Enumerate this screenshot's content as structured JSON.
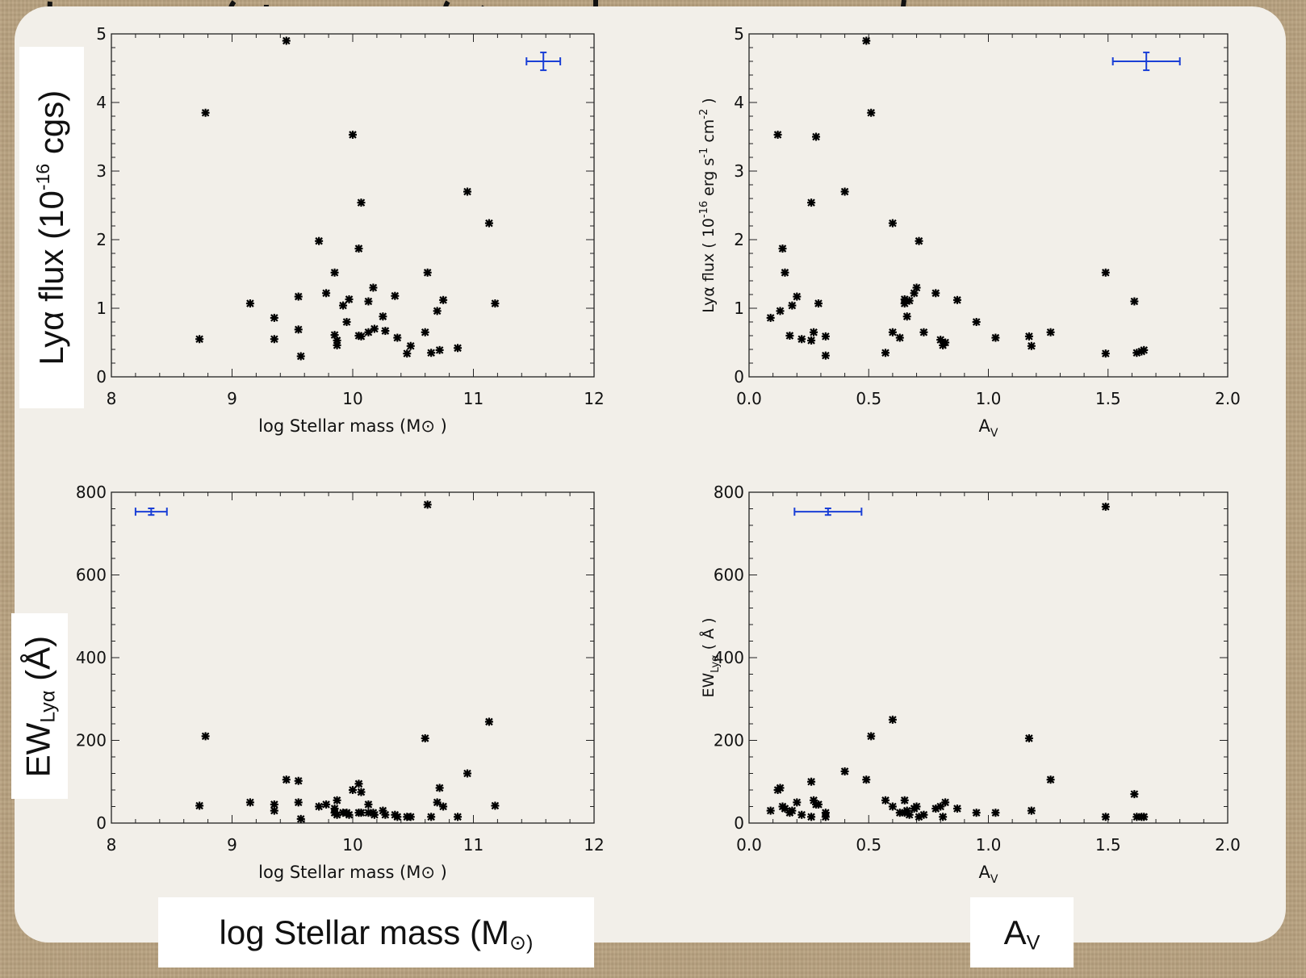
{
  "labels": {
    "flux_big_main": "Lyα flux (10",
    "flux_big_sup": "-16",
    "flux_big_tail": " cgs)",
    "ew_big_main": "EW",
    "ew_big_sub": "Lyα",
    "ew_big_tail": " (Å)",
    "mass_big_main": "log Stellar mass (M",
    "mass_big_tail": "⊙)",
    "av_big_main": "A",
    "av_big_sub": "V"
  },
  "colors": {
    "marker": "#000000",
    "errorbar": "#1a3fd6",
    "slide": "#f2efe9",
    "frame": "#b8a17f"
  },
  "chart_data": [
    {
      "type": "scatter",
      "title": "",
      "xlabel": "log Stellar mass (M⊙ )",
      "ylabel": "",
      "xlim": [
        8,
        12
      ],
      "ylim": [
        0,
        5
      ],
      "xticks": [
        8,
        9,
        10,
        11,
        12
      ],
      "yticks": [
        0,
        1,
        2,
        3,
        4,
        5
      ],
      "xtick_labels": [
        "8",
        "9",
        "10",
        "11",
        "12"
      ],
      "ytick_labels": [
        "0",
        "1",
        "2",
        "3",
        "4",
        "5"
      ],
      "grid": false,
      "errorbar": {
        "x": 11.58,
        "y": 4.6,
        "xerr": 0.14,
        "yerr": 0.13
      },
      "x": [
        8.73,
        8.78,
        9.15,
        9.35,
        9.35,
        9.45,
        9.55,
        9.55,
        9.57,
        9.72,
        9.78,
        9.85,
        9.85,
        9.87,
        9.87,
        9.92,
        9.95,
        9.97,
        10.0,
        10.05,
        10.05,
        10.07,
        10.07,
        10.13,
        10.13,
        10.17,
        10.18,
        10.25,
        10.27,
        10.35,
        10.37,
        10.45,
        10.48,
        10.6,
        10.62,
        10.65,
        10.7,
        10.72,
        10.75,
        10.87,
        10.95,
        11.13,
        11.18
      ],
      "y": [
        0.55,
        3.85,
        1.07,
        0.86,
        0.55,
        4.9,
        1.17,
        0.69,
        0.3,
        1.98,
        1.22,
        1.52,
        0.61,
        0.53,
        0.46,
        1.04,
        0.8,
        1.13,
        3.53,
        0.6,
        1.87,
        0.59,
        2.54,
        1.1,
        0.65,
        1.3,
        0.7,
        0.88,
        0.67,
        1.18,
        0.57,
        0.34,
        0.45,
        0.65,
        1.52,
        0.35,
        0.96,
        0.39,
        1.12,
        0.42,
        2.7,
        2.24,
        1.07
      ]
    },
    {
      "type": "scatter",
      "title": "",
      "xlabel": "A",
      "xlabel_sub": "V",
      "ylabel": "Lyα flux ( 10",
      "ylabel_sup": "-16",
      "ylabel_tail": " erg s",
      "ylabel_sup2": "-1",
      "ylabel_tail2": " cm",
      "ylabel_sup3": "-2",
      "ylabel_tail3": " )",
      "xlim": [
        0,
        2
      ],
      "ylim": [
        0,
        5
      ],
      "xticks": [
        0,
        0.5,
        1.0,
        1.5,
        2.0
      ],
      "yticks": [
        0,
        1,
        2,
        3,
        4,
        5
      ],
      "xtick_labels": [
        "0.0",
        "0.5",
        "1.0",
        "1.5",
        "2.0"
      ],
      "ytick_labels": [
        "0",
        "1",
        "2",
        "3",
        "4",
        "5"
      ],
      "grid": false,
      "errorbar": {
        "x": 1.66,
        "y": 4.6,
        "xerr": 0.14,
        "yerr": 0.13
      },
      "x": [
        0.09,
        0.12,
        0.13,
        0.14,
        0.15,
        0.17,
        0.18,
        0.2,
        0.22,
        0.26,
        0.26,
        0.27,
        0.28,
        0.29,
        0.32,
        0.32,
        0.4,
        0.49,
        0.51,
        0.57,
        0.6,
        0.6,
        0.63,
        0.65,
        0.65,
        0.66,
        0.67,
        0.69,
        0.7,
        0.71,
        0.73,
        0.78,
        0.8,
        0.81,
        0.82,
        0.87,
        0.95,
        1.03,
        1.17,
        1.18,
        1.26,
        1.49,
        1.49,
        1.61,
        1.62,
        1.64,
        1.65
      ],
      "y": [
        0.86,
        3.53,
        0.96,
        1.87,
        1.52,
        0.6,
        1.04,
        1.17,
        0.55,
        2.54,
        0.53,
        0.65,
        3.5,
        1.07,
        0.31,
        0.59,
        2.7,
        4.9,
        3.85,
        0.35,
        0.65,
        2.24,
        0.57,
        1.13,
        1.07,
        0.88,
        1.11,
        1.22,
        1.3,
        1.98,
        0.65,
        1.22,
        0.54,
        0.46,
        0.5,
        1.12,
        0.8,
        0.57,
        0.59,
        0.45,
        0.65,
        1.52,
        0.34,
        1.1,
        0.35,
        0.37,
        0.39
      ]
    },
    {
      "type": "scatter",
      "title": "",
      "xlabel": "log Stellar mass (M⊙ )",
      "ylabel": "",
      "xlim": [
        8,
        12
      ],
      "ylim": [
        0,
        800
      ],
      "xticks": [
        8,
        9,
        10,
        11,
        12
      ],
      "yticks": [
        0,
        200,
        400,
        600,
        800
      ],
      "xtick_labels": [
        "8",
        "9",
        "10",
        "11",
        "12"
      ],
      "ytick_labels": [
        "0",
        "200",
        "400",
        "600",
        "800"
      ],
      "grid": false,
      "errorbar": {
        "x": 8.33,
        "y": 753,
        "xerr": 0.13,
        "yerr": 8
      },
      "x": [
        8.73,
        8.78,
        9.15,
        9.35,
        9.35,
        9.45,
        9.55,
        9.55,
        9.57,
        9.72,
        9.78,
        9.85,
        9.85,
        9.87,
        9.87,
        9.92,
        9.95,
        9.97,
        10.0,
        10.05,
        10.05,
        10.07,
        10.07,
        10.13,
        10.13,
        10.17,
        10.18,
        10.25,
        10.27,
        10.35,
        10.37,
        10.45,
        10.48,
        10.6,
        10.62,
        10.65,
        10.7,
        10.72,
        10.75,
        10.87,
        10.95,
        11.13,
        11.18
      ],
      "y": [
        42,
        210,
        50,
        45,
        30,
        105,
        50,
        102,
        10,
        40,
        45,
        35,
        25,
        55,
        20,
        25,
        25,
        20,
        80,
        25,
        95,
        25,
        75,
        45,
        25,
        25,
        20,
        30,
        20,
        20,
        15,
        15,
        15,
        205,
        770,
        15,
        50,
        85,
        40,
        15,
        120,
        245,
        42
      ]
    },
    {
      "type": "scatter",
      "title": "",
      "xlabel": "A",
      "xlabel_sub": "V",
      "ylabel": "EW",
      "ylabel_sub": "Lyα",
      "ylabel_tail": " ( Å )",
      "xlim": [
        0,
        2
      ],
      "ylim": [
        0,
        800
      ],
      "xticks": [
        0,
        0.5,
        1.0,
        1.5,
        2.0
      ],
      "yticks": [
        0,
        200,
        400,
        600,
        800
      ],
      "xtick_labels": [
        "0.0",
        "0.5",
        "1.0",
        "1.5",
        "2.0"
      ],
      "ytick_labels": [
        "0",
        "200",
        "400",
        "600",
        "800"
      ],
      "grid": false,
      "errorbar": {
        "x": 0.33,
        "y": 753,
        "xerr": 0.14,
        "yerr": 8
      },
      "x": [
        0.09,
        0.12,
        0.13,
        0.14,
        0.15,
        0.17,
        0.18,
        0.2,
        0.22,
        0.26,
        0.26,
        0.27,
        0.28,
        0.29,
        0.32,
        0.32,
        0.4,
        0.49,
        0.51,
        0.57,
        0.6,
        0.6,
        0.63,
        0.65,
        0.65,
        0.66,
        0.67,
        0.69,
        0.7,
        0.71,
        0.73,
        0.78,
        0.8,
        0.81,
        0.82,
        0.87,
        0.95,
        1.03,
        1.17,
        1.18,
        1.26,
        1.49,
        1.49,
        1.61,
        1.62,
        1.64,
        1.65
      ],
      "y": [
        30,
        80,
        85,
        40,
        35,
        25,
        30,
        50,
        20,
        100,
        15,
        55,
        45,
        45,
        25,
        15,
        125,
        105,
        210,
        55,
        40,
        250,
        25,
        55,
        25,
        30,
        20,
        35,
        40,
        15,
        20,
        35,
        40,
        15,
        50,
        35,
        25,
        25,
        205,
        30,
        105,
        15,
        765,
        70,
        15,
        15,
        15
      ]
    }
  ]
}
